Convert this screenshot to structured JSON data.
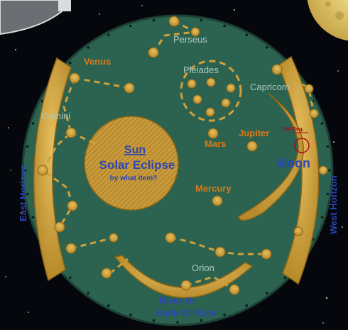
{
  "labels": {
    "perseus": "Perseus",
    "venus": "Venus",
    "pleiades": "Pleiades",
    "capricorn": "Capricorn",
    "gemini": "Gemini",
    "jupiter": "Jupiter",
    "mars": "Mars",
    "mercury": "Mercury",
    "orion": "Orion",
    "moon": "Moon",
    "degrees": "180 Deg.",
    "sun_title": "Sun",
    "sun_subtitle": "Solar Eclipse",
    "sun_question": "by what item?",
    "east_horizon": "East  Horizon",
    "west_horizon": "West  Horizon",
    "river_line1": "River Or",
    "river_line2": "Bank Or River"
  },
  "colors": {
    "disk": "#2b6350",
    "gold": "#d0a03a",
    "gold_dark": "#8a6518",
    "orange_label": "#d97a17",
    "blue_label": "#2b46b6",
    "light_label": "#a9c9bf",
    "sky": "#05070d"
  }
}
